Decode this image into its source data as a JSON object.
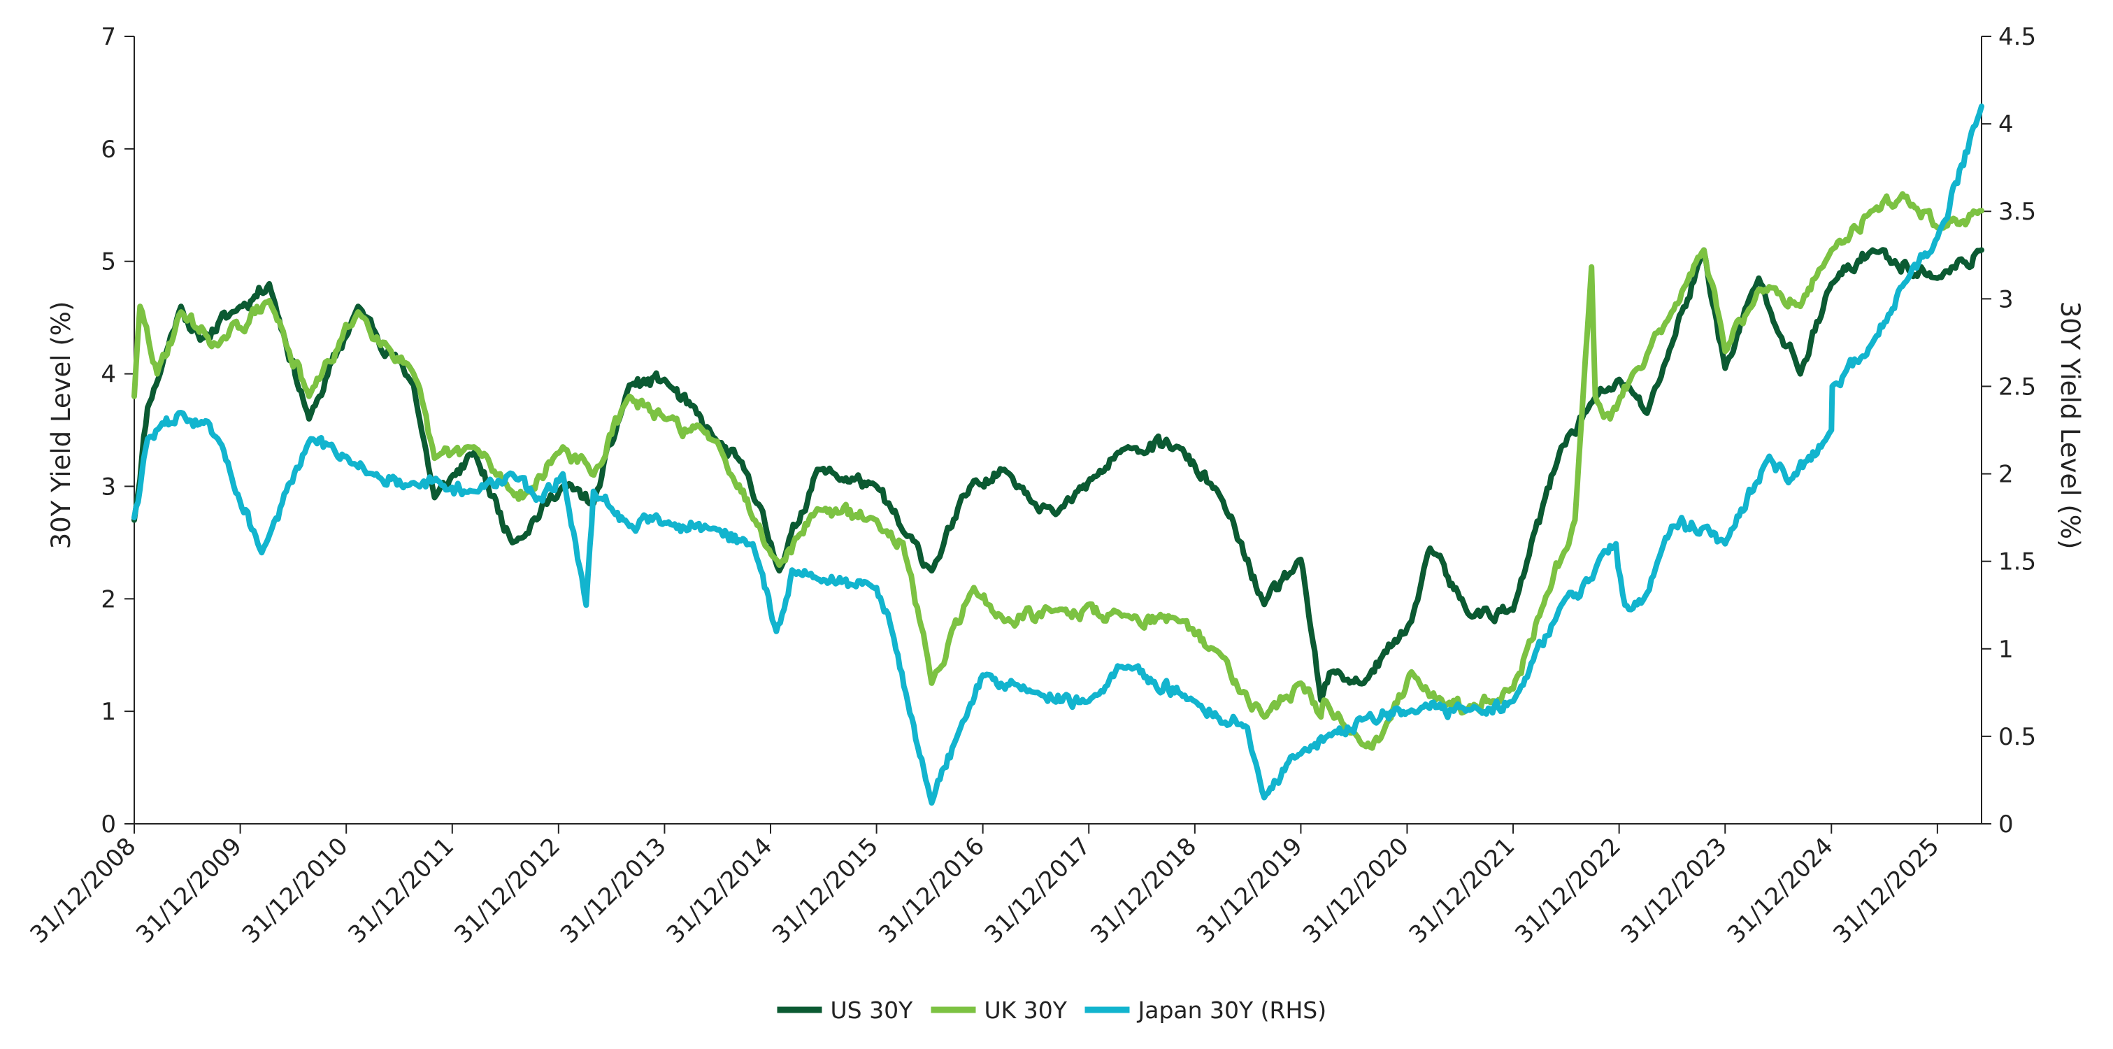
{
  "chart_data": {
    "type": "line",
    "title": "",
    "xlabel": "",
    "ylabel": "30Y Yield Level (%)",
    "ylabel_right": "30Y Yield Level (%)",
    "ylim": [
      0,
      7
    ],
    "ylim_right": [
      0,
      4.5
    ],
    "yticks": [
      "0",
      "1",
      "2",
      "3",
      "4",
      "5",
      "6",
      "7"
    ],
    "yticks_right": [
      "0",
      "0.5",
      "1",
      "1.5",
      "2",
      "2.5",
      "3",
      "3.5",
      "4",
      "4.5"
    ],
    "xlim": [
      "2008-12-31",
      "2026-06-01"
    ],
    "x_tick_dates": [
      "2008-12-31",
      "2009-12-31",
      "2010-12-31",
      "2011-12-31",
      "2012-12-31",
      "2013-12-31",
      "2014-12-31",
      "2015-12-31",
      "2016-12-31",
      "2017-12-31",
      "2018-12-31",
      "2019-12-31",
      "2020-12-31",
      "2021-12-31",
      "2022-12-31",
      "2023-12-31",
      "2024-12-31",
      "2025-12-31"
    ],
    "x_tick_labels": [
      "31/12/2008",
      "31/12/2009",
      "31/12/2010",
      "31/12/2011",
      "31/12/2012",
      "31/12/2013",
      "31/12/2014",
      "31/12/2015",
      "31/12/2016",
      "31/12/2017",
      "31/12/2018",
      "31/12/2019",
      "31/12/2020",
      "31/12/2021",
      "31/12/2022",
      "31/12/2023",
      "31/12/2024",
      "31/12/2025"
    ],
    "legend_position": "bottom-center",
    "grid": false,
    "series": [
      {
        "name": "US 30Y",
        "axis": "left",
        "color": "#0b5a32",
        "x": [
          "2008-12-31",
          "2009-02-15",
          "2009-06-10",
          "2009-08-15",
          "2009-12-31",
          "2010-04-10",
          "2010-08-25",
          "2011-02-10",
          "2011-08-20",
          "2011-10-31",
          "2012-03-15",
          "2012-07-25",
          "2013-01-15",
          "2013-05-01",
          "2013-09-01",
          "2013-12-31",
          "2014-06-30",
          "2014-10-15",
          "2015-01-30",
          "2015-06-10",
          "2015-12-31",
          "2016-03-31",
          "2016-07-08",
          "2016-11-30",
          "2017-03-15",
          "2017-09-08",
          "2018-05-15",
          "2018-11-05",
          "2019-03-31",
          "2019-08-27",
          "2019-12-31",
          "2020-03-09",
          "2020-04-15",
          "2020-08-04",
          "2021-01-15",
          "2021-03-20",
          "2021-08-04",
          "2021-12-31",
          "2022-06-15",
          "2022-09-30",
          "2022-12-31",
          "2023-04-06",
          "2023-10-19",
          "2023-12-31",
          "2024-04-25",
          "2024-09-15",
          "2024-12-31",
          "2025-05-22",
          "2025-12-31",
          "2026-06-01"
        ],
        "values": [
          2.7,
          3.7,
          4.6,
          4.3,
          4.6,
          4.8,
          3.6,
          4.6,
          3.9,
          2.9,
          3.3,
          2.5,
          3.0,
          2.85,
          3.9,
          3.95,
          3.4,
          3.1,
          2.25,
          3.15,
          3.0,
          2.6,
          2.25,
          3.05,
          3.15,
          2.75,
          3.35,
          3.35,
          2.9,
          1.95,
          2.35,
          1.1,
          1.35,
          1.25,
          1.8,
          2.45,
          1.85,
          1.9,
          3.35,
          3.75,
          3.95,
          3.65,
          5.1,
          4.05,
          4.85,
          4.0,
          4.8,
          5.1,
          4.85,
          5.1
        ]
      },
      {
        "name": "UK 30Y",
        "axis": "left",
        "color": "#7cc242",
        "x": [
          "2008-12-31",
          "2009-01-20",
          "2009-03-20",
          "2009-06-10",
          "2009-10-15",
          "2010-04-10",
          "2010-08-25",
          "2011-02-10",
          "2011-08-20",
          "2011-10-31",
          "2012-03-15",
          "2012-07-25",
          "2012-09-20",
          "2013-01-15",
          "2013-05-01",
          "2013-09-01",
          "2013-12-31",
          "2014-06-30",
          "2015-01-30",
          "2015-06-10",
          "2015-12-31",
          "2016-03-31",
          "2016-07-08",
          "2016-11-30",
          "2017-03-15",
          "2017-09-08",
          "2018-05-15",
          "2018-11-05",
          "2019-03-31",
          "2019-08-27",
          "2019-12-31",
          "2020-03-09",
          "2020-03-20",
          "2020-08-04",
          "2020-10-15",
          "2021-01-15",
          "2021-05-12",
          "2021-08-04",
          "2021-12-31",
          "2022-04-15",
          "2022-08-01",
          "2022-09-27",
          "2022-10-10",
          "2022-11-30",
          "2023-02-15",
          "2023-06-30",
          "2023-10-19",
          "2023-12-31",
          "2024-04-25",
          "2024-09-15",
          "2024-12-31",
          "2025-05-22",
          "2025-09-02",
          "2025-12-31",
          "2026-06-01"
        ],
        "values": [
          3.8,
          4.6,
          4.0,
          4.55,
          4.25,
          4.65,
          3.8,
          4.55,
          4.0,
          3.25,
          3.35,
          2.95,
          2.95,
          3.35,
          3.1,
          3.8,
          3.6,
          3.4,
          2.3,
          2.8,
          2.7,
          2.5,
          1.25,
          2.1,
          1.8,
          1.9,
          1.85,
          1.8,
          1.5,
          0.95,
          1.25,
          0.95,
          1.1,
          0.7,
          0.85,
          1.35,
          1.05,
          1.05,
          1.2,
          1.95,
          2.7,
          4.95,
          3.8,
          3.6,
          4.0,
          4.55,
          5.1,
          4.2,
          4.75,
          4.6,
          5.1,
          5.45,
          5.6,
          5.3,
          5.45
        ]
      },
      {
        "name": "Japan 30Y (RHS)",
        "axis": "right",
        "color": "#12b4ce",
        "x": [
          "2008-12-31",
          "2009-02-15",
          "2009-06-10",
          "2009-10-15",
          "2010-03-15",
          "2010-08-31",
          "2010-12-31",
          "2011-03-31",
          "2011-08-20",
          "2012-03-15",
          "2012-07-25",
          "2012-10-15",
          "2013-01-15",
          "2013-04-05",
          "2013-04-30",
          "2013-09-01",
          "2013-12-31",
          "2014-06-30",
          "2014-10-31",
          "2015-01-20",
          "2015-03-15",
          "2015-06-10",
          "2015-12-31",
          "2016-02-15",
          "2016-07-08",
          "2016-10-15",
          "2016-12-31",
          "2017-06-30",
          "2017-12-31",
          "2018-05-15",
          "2018-12-31",
          "2019-06-30",
          "2019-08-27",
          "2019-12-31",
          "2020-03-31",
          "2020-08-04",
          "2021-01-15",
          "2021-08-04",
          "2021-12-31",
          "2022-06-15",
          "2022-09-30",
          "2022-12-20",
          "2023-01-20",
          "2023-03-31",
          "2023-06-30",
          "2023-10-31",
          "2023-12-31",
          "2024-05-31",
          "2024-08-05",
          "2024-12-31",
          "2025-01-03",
          "2025-05-22",
          "2025-09-15",
          "2025-12-31",
          "2026-06-01"
        ],
        "values": [
          1.75,
          2.2,
          2.35,
          2.2,
          1.55,
          2.2,
          2.1,
          2.0,
          1.95,
          1.9,
          2.0,
          1.85,
          2.0,
          1.25,
          1.9,
          1.7,
          1.72,
          1.68,
          1.6,
          1.1,
          1.45,
          1.4,
          1.35,
          1.15,
          0.12,
          0.55,
          0.85,
          0.75,
          0.7,
          0.9,
          0.7,
          0.55,
          0.15,
          0.4,
          0.5,
          0.6,
          0.65,
          0.65,
          0.7,
          1.25,
          1.4,
          1.6,
          1.25,
          1.3,
          1.7,
          1.7,
          1.6,
          2.1,
          1.95,
          2.25,
          2.5,
          2.75,
          3.1,
          3.35,
          4.1
        ]
      }
    ]
  }
}
